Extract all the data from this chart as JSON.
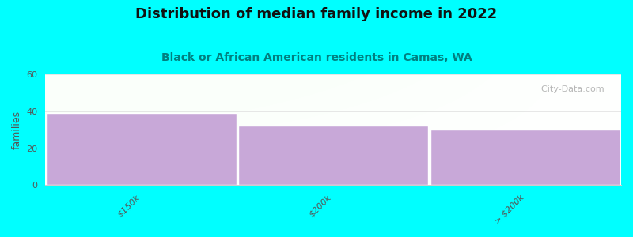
{
  "title": "Distribution of median family income in 2022",
  "subtitle": "Black or African American residents in Camas, WA",
  "categories": [
    "$150k",
    "$200k",
    "> $200k"
  ],
  "values": [
    39,
    32,
    30
  ],
  "bar_color": "#c8a8d8",
  "bar_edge_color": "#ffffff",
  "ylabel": "families",
  "ylim": [
    0,
    60
  ],
  "yticks": [
    0,
    20,
    40,
    60
  ],
  "background_color": "#00ffff",
  "title_fontsize": 13,
  "title_color": "#111111",
  "subtitle_fontsize": 10,
  "subtitle_color": "#008080",
  "ylabel_color": "#555555",
  "ylabel_fontsize": 9,
  "tick_fontsize": 8,
  "tick_color": "#555555",
  "watermark_text": "  City-Data.com",
  "watermark_color": "#aaaaaa",
  "spine_color": "#cccccc",
  "grid_color": "#dddddd"
}
